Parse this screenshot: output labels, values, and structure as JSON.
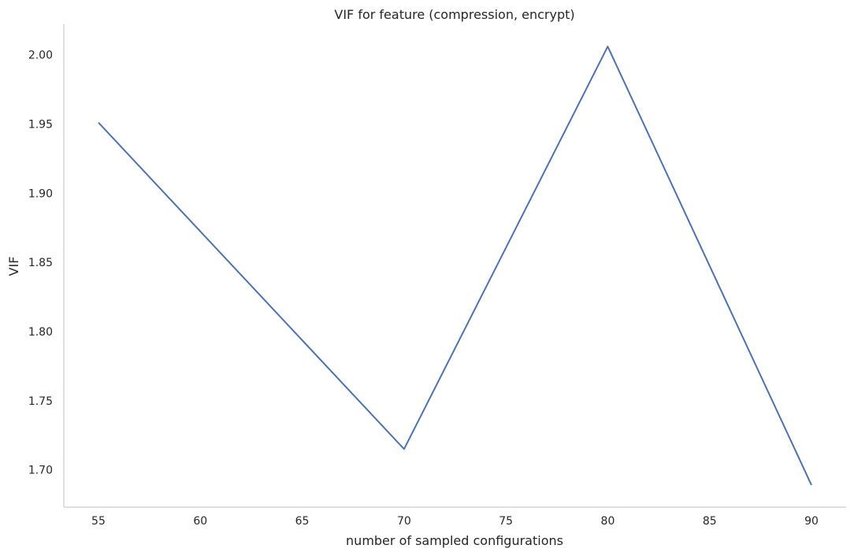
{
  "chart_data": {
    "type": "line",
    "title": "VIF for feature (compression, encrypt)",
    "xlabel": "number of sampled configurations",
    "ylabel": "VIF",
    "x": [
      55,
      70,
      80,
      90
    ],
    "series": [
      {
        "values": [
          1.951,
          1.715,
          2.006,
          1.689
        ]
      }
    ],
    "xlim": [
      53.3,
      91.7
    ],
    "ylim": [
      1.673,
      2.022
    ],
    "xticks": [
      "55",
      "60",
      "65",
      "70",
      "75",
      "80",
      "85",
      "90"
    ],
    "yticks": [
      "1.70",
      "1.75",
      "1.80",
      "1.85",
      "1.90",
      "1.95",
      "2.00"
    ],
    "grid": false,
    "legend": "none",
    "colors": {
      "line": "#4c72b0",
      "spine": "#cccccc",
      "text": "#262626"
    }
  }
}
